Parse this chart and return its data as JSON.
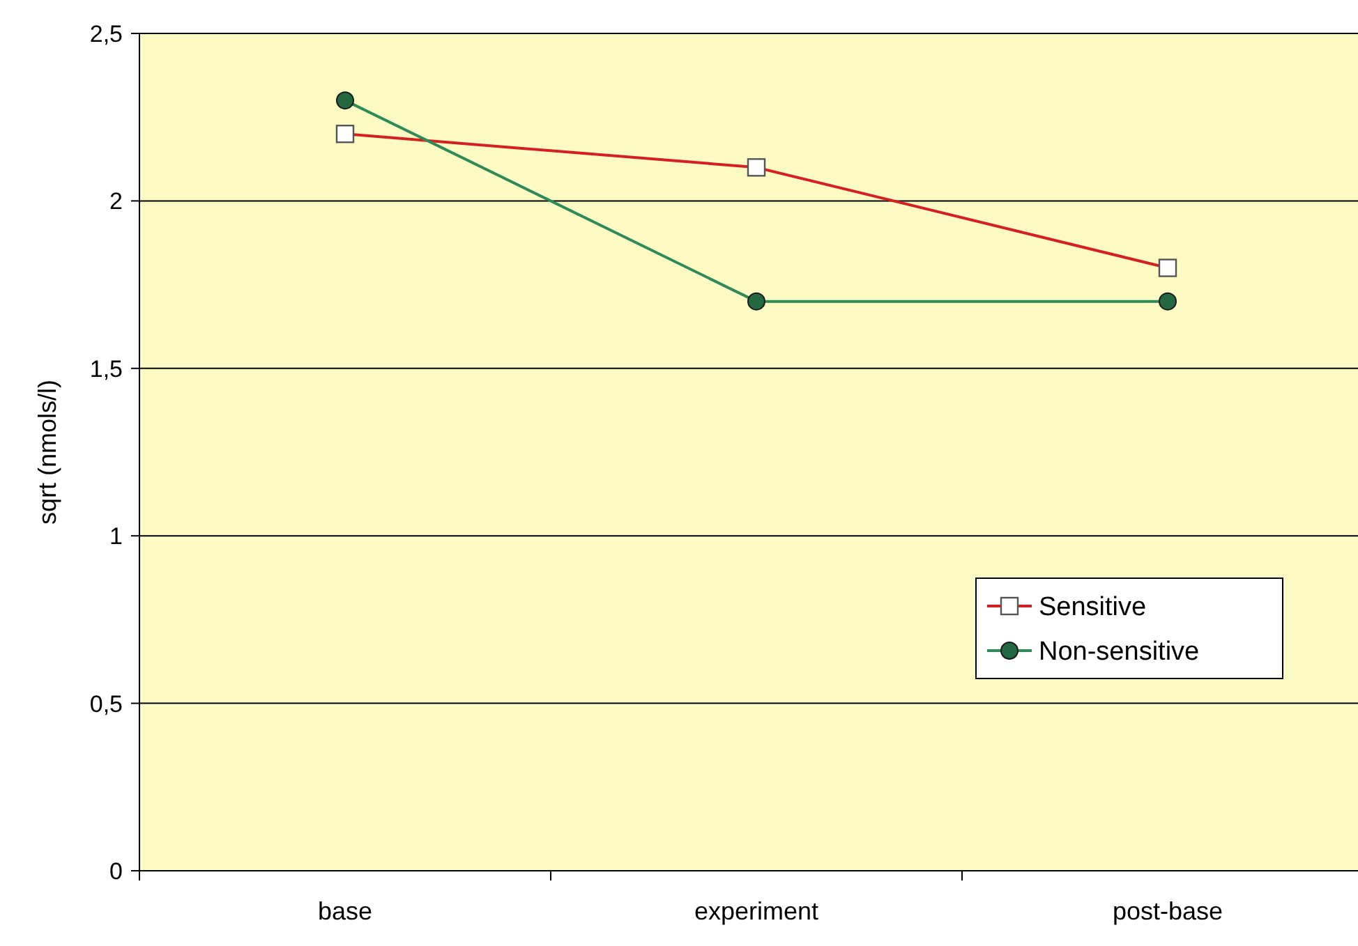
{
  "chart_data": {
    "type": "line",
    "ylabel": "sqrt (nmols/l)",
    "categories": [
      "base",
      "experiment",
      "post-base"
    ],
    "series": [
      {
        "name": "Sensitive",
        "color": "#d42020",
        "values": [
          2.2,
          2.1,
          1.8
        ],
        "marker": "square"
      },
      {
        "name": "Non-sensitive",
        "color": "#2e8b57",
        "values": [
          2.3,
          1.7,
          1.7
        ],
        "marker": "circle"
      }
    ],
    "ylim": [
      0,
      2.5
    ],
    "yticks": [
      0,
      {
        "value": 0.5,
        "label": "0,5"
      },
      1,
      {
        "value": 1.5,
        "label": "1,5"
      },
      2,
      {
        "value": 2.5,
        "label": "2,5"
      }
    ],
    "grid": "y",
    "legend": "right"
  }
}
